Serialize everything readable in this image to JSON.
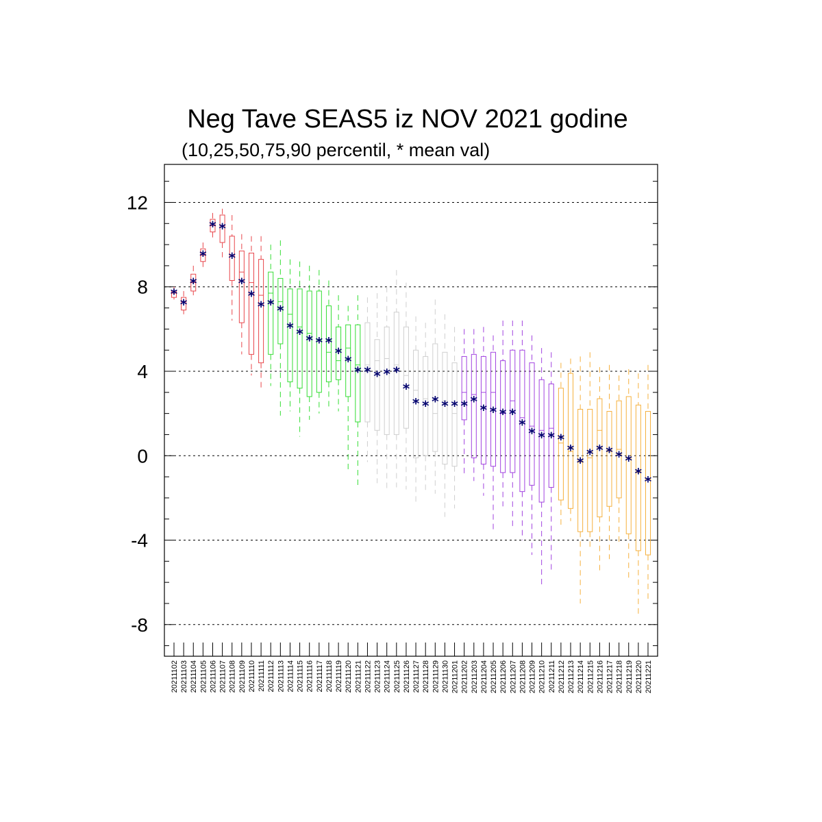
{
  "title": "Neg Tave SEAS5 iz NOV 2021 godine",
  "subtitle": "(10,25,50,75,90 percentil, * mean val)",
  "colors": {
    "red": "#e8454a",
    "green": "#33dd33",
    "gray": "#cfcfcf",
    "purple": "#a142e0",
    "orange": "#f5b03d",
    "mean_marker": "#00006e",
    "grid": "#000000"
  },
  "chart_data": {
    "type": "box",
    "ylim": [
      -9.5,
      13.8
    ],
    "yticks": [
      12,
      8,
      4,
      0,
      -4,
      -8
    ],
    "ytick_labels": [
      "12",
      "8",
      "4",
      "0",
      "-4",
      "-8"
    ],
    "grid": "horizontal dashed at major ticks",
    "categories": [
      "20211102",
      "20211103",
      "20211104",
      "20211105",
      "20211106",
      "20211107",
      "20211108",
      "20211109",
      "20211110",
      "20211111",
      "20211112",
      "20211113",
      "20211114",
      "20211115",
      "20211116",
      "20211117",
      "20211118",
      "20211119",
      "20211120",
      "20211121",
      "20211122",
      "20211123",
      "20211124",
      "20211125",
      "20211126",
      "20211127",
      "20211128",
      "20211129",
      "20211130",
      "20211201",
      "20211202",
      "20211203",
      "20211204",
      "20211205",
      "20211206",
      "20211207",
      "20211208",
      "20211209",
      "20211210",
      "20211211",
      "20211212",
      "20211213",
      "20211214",
      "20211215",
      "20211216",
      "20211217",
      "20211218",
      "20211219",
      "20211220",
      "20211221"
    ],
    "boxes": [
      {
        "p10": 7.4,
        "p25": 7.5,
        "p50": 7.7,
        "p75": 7.8,
        "p90": 8.0,
        "mean": 7.7,
        "color": "red"
      },
      {
        "p10": 6.7,
        "p25": 6.9,
        "p50": 7.3,
        "p75": 7.5,
        "p90": 7.8,
        "mean": 7.2,
        "color": "red"
      },
      {
        "p10": 7.6,
        "p25": 7.8,
        "p50": 8.2,
        "p75": 8.6,
        "p90": 9.0,
        "mean": 8.2,
        "color": "red"
      },
      {
        "p10": 8.9,
        "p25": 9.2,
        "p50": 9.5,
        "p75": 9.8,
        "p90": 10.1,
        "mean": 9.5,
        "color": "red"
      },
      {
        "p10": 10.2,
        "p25": 10.6,
        "p50": 10.9,
        "p75": 11.2,
        "p90": 11.5,
        "mean": 10.9,
        "color": "red"
      },
      {
        "p10": 9.4,
        "p25": 10.1,
        "p50": 10.9,
        "p75": 11.4,
        "p90": 11.7,
        "mean": 10.8,
        "color": "red"
      },
      {
        "p10": 6.4,
        "p25": 8.3,
        "p50": 9.5,
        "p75": 10.4,
        "p90": 11.4,
        "mean": 9.4,
        "color": "red"
      },
      {
        "p10": 4.8,
        "p25": 6.3,
        "p50": 8.7,
        "p75": 9.7,
        "p90": 10.5,
        "mean": 8.2,
        "color": "red"
      },
      {
        "p10": 3.8,
        "p25": 4.8,
        "p50": 8.2,
        "p75": 9.6,
        "p90": 10.4,
        "mean": 7.6,
        "color": "red"
      },
      {
        "p10": 3.2,
        "p25": 4.4,
        "p50": 7.6,
        "p75": 9.3,
        "p90": 10.4,
        "mean": 7.1,
        "color": "red"
      },
      {
        "p10": 3.3,
        "p25": 4.8,
        "p50": 7.7,
        "p75": 8.7,
        "p90": 10.0,
        "mean": 7.2,
        "color": "green"
      },
      {
        "p10": 1.9,
        "p25": 5.3,
        "p50": 7.3,
        "p75": 8.4,
        "p90": 10.2,
        "mean": 6.9,
        "color": "green"
      },
      {
        "p10": 2.1,
        "p25": 3.5,
        "p50": 6.7,
        "p75": 7.9,
        "p90": 9.3,
        "mean": 6.1,
        "color": "green"
      },
      {
        "p10": 0.9,
        "p25": 3.2,
        "p50": 6.1,
        "p75": 7.9,
        "p90": 9.2,
        "mean": 5.8,
        "color": "green"
      },
      {
        "p10": 1.7,
        "p25": 2.8,
        "p50": 5.8,
        "p75": 7.8,
        "p90": 9.0,
        "mean": 5.5,
        "color": "green"
      },
      {
        "p10": 2.0,
        "p25": 3.0,
        "p50": 5.5,
        "p75": 7.8,
        "p90": 8.8,
        "mean": 5.4,
        "color": "green"
      },
      {
        "p10": 2.3,
        "p25": 3.5,
        "p50": 4.9,
        "p75": 7.1,
        "p90": 8.3,
        "mean": 5.4,
        "color": "green"
      },
      {
        "p10": 2.1,
        "p25": 3.6,
        "p50": 4.5,
        "p75": 6.1,
        "p90": 7.6,
        "mean": 4.9,
        "color": "green"
      },
      {
        "p10": -0.8,
        "p25": 2.8,
        "p50": 5.1,
        "p75": 6.2,
        "p90": 7.1,
        "mean": 4.5,
        "color": "green"
      },
      {
        "p10": -1.4,
        "p25": 1.6,
        "p50": 4.3,
        "p75": 6.2,
        "p90": 7.6,
        "mean": 4.0,
        "color": "green"
      },
      {
        "p10": -0.3,
        "p25": 1.6,
        "p50": 4.3,
        "p75": 6.3,
        "p90": 7.5,
        "mean": 4.0,
        "color": "gray"
      },
      {
        "p10": -1.3,
        "p25": 1.2,
        "p50": 4.5,
        "p75": 5.5,
        "p90": 7.7,
        "mean": 3.8,
        "color": "gray"
      },
      {
        "p10": -1.7,
        "p25": 1.0,
        "p50": 4.6,
        "p75": 6.1,
        "p90": 8.0,
        "mean": 3.9,
        "color": "gray"
      },
      {
        "p10": -1.5,
        "p25": 1.0,
        "p50": 4.3,
        "p75": 6.8,
        "p90": 8.8,
        "mean": 4.0,
        "color": "gray"
      },
      {
        "p10": -1.6,
        "p25": 1.3,
        "p50": 3.8,
        "p75": 6.1,
        "p90": 8.2,
        "mean": 3.2,
        "color": "gray"
      },
      {
        "p10": -2.3,
        "p25": -0.1,
        "p50": 3.1,
        "p75": 5.0,
        "p90": 6.6,
        "mean": 2.5,
        "color": "gray"
      },
      {
        "p10": -1.8,
        "p25": 0.0,
        "p50": 2.7,
        "p75": 4.7,
        "p90": 6.3,
        "mean": 2.4,
        "color": "gray"
      },
      {
        "p10": -1.8,
        "p25": 0.2,
        "p50": 2.0,
        "p75": 5.3,
        "p90": 7.4,
        "mean": 2.6,
        "color": "gray"
      },
      {
        "p10": -2.9,
        "p25": -0.4,
        "p50": 2.6,
        "p75": 4.9,
        "p90": 6.7,
        "mean": 2.4,
        "color": "gray"
      },
      {
        "p10": -2.5,
        "p25": -0.5,
        "p50": 2.0,
        "p75": 4.4,
        "p90": 6.1,
        "mean": 2.4,
        "color": "gray"
      },
      {
        "p10": -1.0,
        "p25": 1.7,
        "p50": 3.0,
        "p75": 4.7,
        "p90": 6.0,
        "mean": 2.4,
        "color": "purple"
      },
      {
        "p10": -1.2,
        "p25": -0.1,
        "p50": 2.9,
        "p75": 4.8,
        "p90": 6.0,
        "mean": 2.6,
        "color": "purple"
      },
      {
        "p10": -1.9,
        "p25": -0.4,
        "p50": 3.0,
        "p75": 4.7,
        "p90": 6.1,
        "mean": 2.2,
        "color": "purple"
      },
      {
        "p10": -3.5,
        "p25": -0.5,
        "p50": 3.0,
        "p75": 4.9,
        "p90": 5.7,
        "mean": 2.1,
        "color": "purple"
      },
      {
        "p10": -2.4,
        "p25": -0.8,
        "p50": 2.0,
        "p75": 4.5,
        "p90": 6.4,
        "mean": 2.0,
        "color": "purple"
      },
      {
        "p10": -3.4,
        "p25": -0.8,
        "p50": 2.6,
        "p75": 5.0,
        "p90": 6.4,
        "mean": 2.0,
        "color": "purple"
      },
      {
        "p10": -4.0,
        "p25": -1.7,
        "p50": 1.8,
        "p75": 5.0,
        "p90": 6.4,
        "mean": 1.5,
        "color": "purple"
      },
      {
        "p10": -4.7,
        "p25": -1.4,
        "p50": 1.4,
        "p75": 4.4,
        "p90": 5.7,
        "mean": 1.1,
        "color": "purple"
      },
      {
        "p10": -6.1,
        "p25": -2.2,
        "p50": 1.2,
        "p75": 3.6,
        "p90": 5.1,
        "mean": 0.9,
        "color": "purple"
      },
      {
        "p10": -5.4,
        "p25": -1.5,
        "p50": 1.3,
        "p75": 3.4,
        "p90": 4.9,
        "mean": 0.9,
        "color": "purple"
      },
      {
        "p10": -3.4,
        "p25": -2.1,
        "p50": 0.6,
        "p75": 3.2,
        "p90": 4.4,
        "mean": 0.8,
        "color": "orange"
      },
      {
        "p10": -3.1,
        "p25": -2.5,
        "p50": 0.2,
        "p75": 3.9,
        "p90": 4.6,
        "mean": 0.3,
        "color": "orange"
      },
      {
        "p10": -7.0,
        "p25": -3.6,
        "p50": -0.3,
        "p75": 2.2,
        "p90": 4.7,
        "mean": -0.3,
        "color": "orange"
      },
      {
        "p10": -4.4,
        "p25": -3.6,
        "p50": -0.1,
        "p75": 2.2,
        "p90": 4.9,
        "mean": 0.1,
        "color": "orange"
      },
      {
        "p10": -5.6,
        "p25": -2.9,
        "p50": 1.2,
        "p75": 2.7,
        "p90": 4.2,
        "mean": 0.3,
        "color": "orange"
      },
      {
        "p10": -4.9,
        "p25": -2.4,
        "p50": 0.2,
        "p75": 2.1,
        "p90": 4.3,
        "mean": 0.2,
        "color": "orange"
      },
      {
        "p10": -4.2,
        "p25": -2.0,
        "p50": 0.3,
        "p75": 2.6,
        "p90": 3.8,
        "mean": 0.0,
        "color": "orange"
      },
      {
        "p10": -5.8,
        "p25": -3.7,
        "p50": -0.1,
        "p75": 2.8,
        "p90": 4.1,
        "mean": -0.2,
        "color": "orange"
      },
      {
        "p10": -7.6,
        "p25": -4.5,
        "p50": -0.8,
        "p75": 2.4,
        "p90": 3.9,
        "mean": -0.8,
        "color": "orange"
      },
      {
        "p10": -6.8,
        "p25": -4.7,
        "p50": -1.1,
        "p75": 2.1,
        "p90": 4.3,
        "mean": -1.2,
        "color": "orange"
      }
    ]
  }
}
